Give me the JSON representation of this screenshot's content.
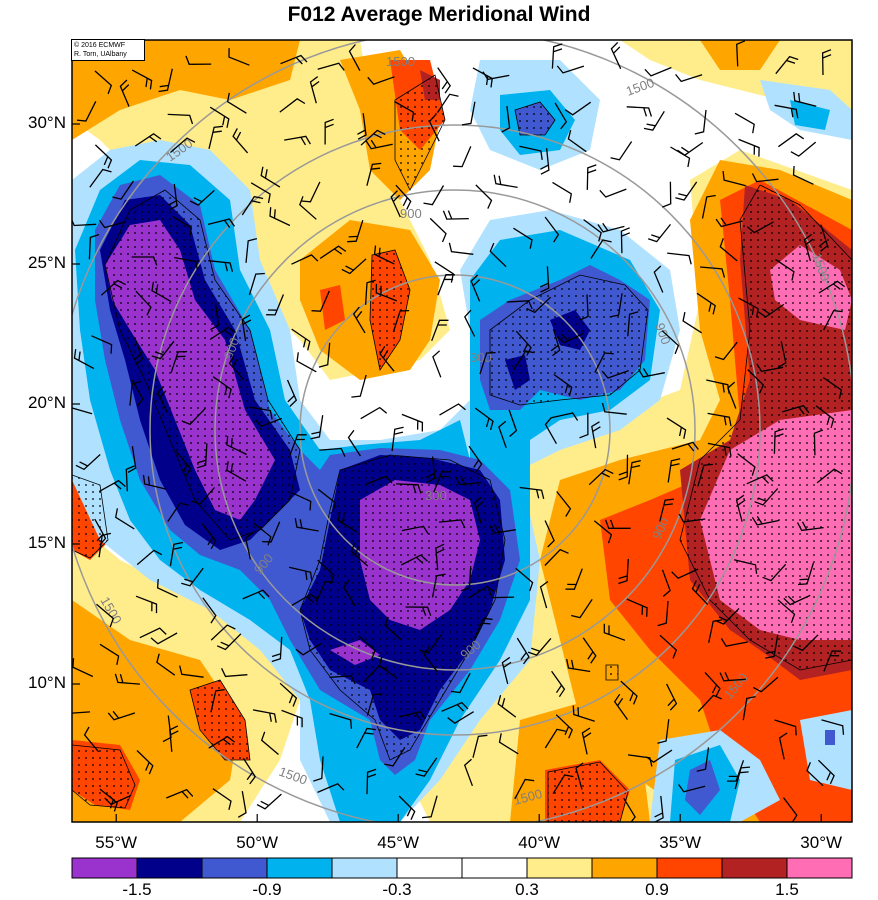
{
  "title": "F012 Average Meridional Wind",
  "credit": {
    "line1": "© 2016 ECMWF",
    "line2": "R. Torn, UAlbany"
  },
  "y_axis": [
    {
      "label": "30°N",
      "lat": 30
    },
    {
      "label": "25°N",
      "lat": 25
    },
    {
      "label": "20°N",
      "lat": 20
    },
    {
      "label": "15°N",
      "lat": 15
    },
    {
      "label": "10°N",
      "lat": 10
    }
  ],
  "x_axis": [
    {
      "label": "55°W",
      "lon": -55
    },
    {
      "label": "50°W",
      "lon": -50
    },
    {
      "label": "45°W",
      "lon": -45
    },
    {
      "label": "40°W",
      "lon": -40
    },
    {
      "label": "35°W",
      "lon": -35
    },
    {
      "label": "30°W",
      "lon": -30
    }
  ],
  "colorbar": {
    "colors": [
      "#9a32cd",
      "#00008b",
      "#4059d1",
      "#00b2ee",
      "#b0e2ff",
      "#ffffff",
      "#ffffff",
      "#ffec8b",
      "#ffa500",
      "#ff4500",
      "#b22222",
      "#ff6eb4"
    ],
    "labels": [
      {
        "label": "-1.5",
        "boundary": 1
      },
      {
        "label": "-0.9",
        "boundary": 3
      },
      {
        "label": "-0.3",
        "boundary": 5
      },
      {
        "label": "0.3",
        "boundary": 7
      },
      {
        "label": "0.9",
        "boundary": 9
      },
      {
        "label": "1.5",
        "boundary": 11
      }
    ]
  },
  "contour_labels": [
    "1500",
    "900",
    "300"
  ]
}
